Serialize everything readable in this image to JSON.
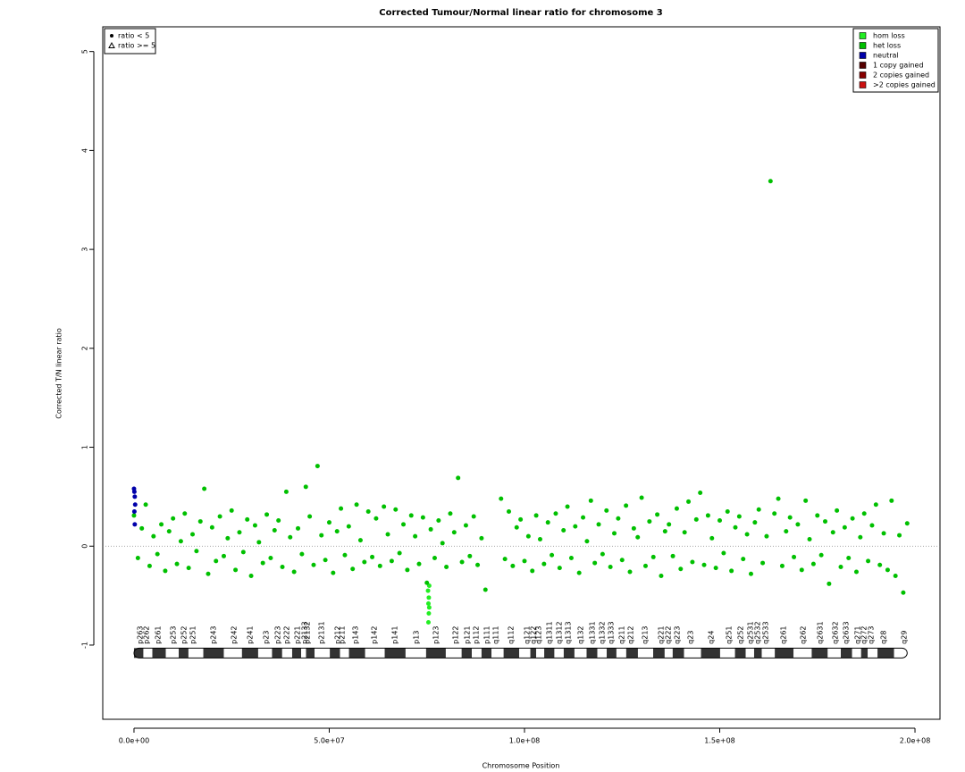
{
  "chart_data": {
    "type": "scatter",
    "title": "Corrected Tumour/Normal linear ratio for chromosome  3",
    "xlabel": "Chromosome Position",
    "ylabel": "Corrected T/N linear ratio",
    "xlim": [
      -8000000.0,
      206400000.0
    ],
    "ylim": [
      -1.75,
      5.25
    ],
    "xticks": [
      {
        "value": 0,
        "label": "0.0e+00"
      },
      {
        "value": 50000000.0,
        "label": "5.0e+07"
      },
      {
        "value": 100000000.0,
        "label": "1.0e+08"
      },
      {
        "value": 150000000.0,
        "label": "1.5e+08"
      },
      {
        "value": 200000000.0,
        "label": "2.0e+08"
      }
    ],
    "yticks": [
      -1,
      0,
      1,
      2,
      3,
      4,
      5
    ],
    "hline": 0,
    "legend": "top-right",
    "shape_legend": [
      "ratio < 5",
      "ratio >= 5"
    ],
    "series": [
      {
        "name": "hom loss",
        "color": "#22ee22",
        "x": [
          75300000.0,
          75500000.0,
          75400000.0,
          75600000.0,
          75500000.0,
          75400000.0,
          75600000.0
        ],
        "y": [
          -0.45,
          -0.52,
          -0.58,
          -0.62,
          -0.68,
          -0.77,
          -0.4
        ]
      },
      {
        "name": "het loss",
        "color": "#00c000",
        "x": [
          0,
          1000000.0,
          2000000.0,
          3000000.0,
          4000000.0,
          5000000.0,
          6000000.0,
          7000000.0,
          8000000.0,
          9000000.0,
          10000000.0,
          11000000.0,
          12000000.0,
          13000000.0,
          14000000.0,
          15000000.0,
          16000000.0,
          17000000.0,
          18000000.0,
          19000000.0,
          20000000.0,
          21000000.0,
          22000000.0,
          23000000.0,
          24000000.0,
          25000000.0,
          26000000.0,
          27000000.0,
          28000000.0,
          29000000.0,
          30000000.0,
          31000000.0,
          32000000.0,
          33000000.0,
          34000000.0,
          35000000.0,
          36000000.0,
          37000000.0,
          38000000.0,
          39000000.0,
          40000000.0,
          41000000.0,
          42000000.0,
          43000000.0,
          44000000.0,
          45000000.0,
          46000000.0,
          47000000.0,
          48000000.0,
          49000000.0,
          50000000.0,
          51000000.0,
          52000000.0,
          53000000.0,
          54000000.0,
          55000000.0,
          56000000.0,
          57000000.0,
          58000000.0,
          59000000.0,
          60000000.0,
          61000000.0,
          62000000.0,
          63000000.0,
          64000000.0,
          65000000.0,
          66000000.0,
          67000000.0,
          68000000.0,
          69000000.0,
          70000000.0,
          71000000.0,
          72000000.0,
          73000000.0,
          74000000.0,
          75000000.0,
          76000000.0,
          77000000.0,
          78000000.0,
          79000000.0,
          80000000.0,
          81000000.0,
          82000000.0,
          83000000.0,
          84000000.0,
          85000000.0,
          86000000.0,
          87000000.0,
          88000000.0,
          89000000.0,
          90000000.0,
          94000000.0,
          95000000.0,
          96000000.0,
          97000000.0,
          98000000.0,
          99000000.0,
          100000000.0,
          101000000.0,
          102000000.0,
          103000000.0,
          104000000.0,
          105000000.0,
          106000000.0,
          107000000.0,
          108000000.0,
          109000000.0,
          110000000.0,
          111000000.0,
          112000000.0,
          113000000.0,
          114000000.0,
          115000000.0,
          116000000.0,
          117000000.0,
          118000000.0,
          119000000.0,
          120000000.0,
          121000000.0,
          122000000.0,
          123000000.0,
          124000000.0,
          125000000.0,
          126000000.0,
          127000000.0,
          128000000.0,
          129000000.0,
          130000000.0,
          131000000.0,
          132000000.0,
          133000000.0,
          134000000.0,
          135000000.0,
          136000000.0,
          137000000.0,
          138000000.0,
          139000000.0,
          140000000.0,
          141000000.0,
          142000000.0,
          143000000.0,
          144000000.0,
          145000000.0,
          146000000.0,
          147000000.0,
          148000000.0,
          149000000.0,
          150000000.0,
          151000000.0,
          152000000.0,
          153000000.0,
          154000000.0,
          155000000.0,
          156000000.0,
          157000000.0,
          158000000.0,
          159000000.0,
          160000000.0,
          161000000.0,
          162000000.0,
          163000000.0,
          164000000.0,
          165000000.0,
          166000000.0,
          167000000.0,
          168000000.0,
          169000000.0,
          170000000.0,
          171000000.0,
          172000000.0,
          173000000.0,
          174000000.0,
          175000000.0,
          176000000.0,
          177000000.0,
          178000000.0,
          179000000.0,
          180000000.0,
          181000000.0,
          182000000.0,
          183000000.0,
          184000000.0,
          185000000.0,
          186000000.0,
          187000000.0,
          188000000.0,
          189000000.0,
          190000000.0,
          191000000.0,
          192000000.0,
          193000000.0,
          194000000.0,
          195000000.0,
          196000000.0,
          197000000.0,
          198000000.0
        ],
        "y": [
          0.31,
          -0.12,
          0.18,
          0.42,
          -0.2,
          0.1,
          -0.08,
          0.22,
          -0.25,
          0.15,
          0.28,
          -0.18,
          0.05,
          0.33,
          -0.22,
          0.12,
          -0.05,
          0.25,
          0.58,
          -0.28,
          0.19,
          -0.15,
          0.3,
          -0.1,
          0.08,
          0.36,
          -0.24,
          0.14,
          -0.06,
          0.27,
          -0.3,
          0.21,
          0.04,
          -0.17,
          0.32,
          -0.12,
          0.16,
          0.26,
          -0.21,
          0.55,
          0.09,
          -0.26,
          0.18,
          -0.08,
          0.6,
          0.3,
          -0.19,
          0.81,
          0.11,
          -0.14,
          0.24,
          -0.27,
          0.15,
          0.38,
          -0.09,
          0.2,
          -0.23,
          0.42,
          0.06,
          -0.16,
          0.35,
          -0.11,
          0.28,
          -0.2,
          0.4,
          0.12,
          -0.15,
          0.37,
          -0.07,
          0.22,
          -0.24,
          0.31,
          0.1,
          -0.18,
          0.29,
          -0.37,
          0.17,
          -0.12,
          0.26,
          0.03,
          -0.21,
          0.33,
          0.14,
          0.69,
          -0.16,
          0.21,
          -0.1,
          0.3,
          -0.19,
          0.08,
          -0.44,
          0.48,
          -0.13,
          0.35,
          -0.2,
          0.19,
          0.27,
          -0.15,
          0.1,
          -0.25,
          0.31,
          0.07,
          -0.18,
          0.24,
          -0.09,
          0.33,
          -0.22,
          0.16,
          0.4,
          -0.12,
          0.2,
          -0.27,
          0.29,
          0.05,
          0.46,
          -0.17,
          0.22,
          -0.08,
          0.36,
          -0.21,
          0.13,
          0.28,
          -0.14,
          0.41,
          -0.26,
          0.18,
          0.09,
          0.49,
          -0.2,
          0.25,
          -0.11,
          0.32,
          -0.3,
          0.15,
          0.22,
          -0.1,
          0.38,
          -0.23,
          0.14,
          0.45,
          -0.16,
          0.27,
          0.54,
          -0.19,
          0.31,
          0.08,
          -0.22,
          0.26,
          -0.07,
          0.35,
          -0.25,
          0.19,
          0.3,
          -0.13,
          0.12,
          -0.28,
          0.24,
          0.37,
          -0.17,
          0.1,
          3.69,
          0.33,
          0.48,
          -0.2,
          0.15,
          0.29,
          -0.11,
          0.22,
          -0.24,
          0.46,
          0.07,
          -0.18,
          0.31,
          -0.09,
          0.25,
          -0.38,
          0.14,
          0.36,
          -0.21,
          0.19,
          -0.12,
          0.28,
          -0.26,
          0.09,
          0.33,
          -0.15,
          0.21,
          0.42,
          -0.19,
          0.13,
          -0.24,
          0.46,
          -0.3,
          0.11,
          -0.47,
          0.23
        ]
      },
      {
        "name": "neutral",
        "color": "#0000aa",
        "x": [
          0,
          100000.0,
          200000.0,
          300000.0,
          100000.0,
          200000.0
        ],
        "y": [
          0.58,
          0.55,
          0.5,
          0.42,
          0.35,
          0.22
        ]
      },
      {
        "name": "1 copy gained",
        "color": "#550000",
        "x": [],
        "y": []
      },
      {
        "name": "2 copies gained",
        "color": "#880000",
        "x": [],
        "y": []
      },
      {
        "name": ">2 copies gained",
        "color": "#cc1111",
        "x": [],
        "y": []
      }
    ],
    "ideogram": {
      "y": -1.08,
      "end": 198000000.0,
      "bands": [
        {
          "label": "p263",
          "x": 1600000.0
        },
        {
          "label": "p262",
          "x": 3200000.0
        },
        {
          "label": "p261",
          "x": 6200000.0
        },
        {
          "label": "p253",
          "x": 10100000.0
        },
        {
          "label": "p252",
          "x": 12800000.0
        },
        {
          "label": "p251",
          "x": 15100000.0
        },
        {
          "label": "p243",
          "x": 20400000.0
        },
        {
          "label": "p242",
          "x": 25600000.0
        },
        {
          "label": "p241",
          "x": 29700000.0
        },
        {
          "label": "p23",
          "x": 33900000.0
        },
        {
          "label": "p223",
          "x": 36800000.0
        },
        {
          "label": "p222",
          "x": 39100000.0
        },
        {
          "label": "p221",
          "x": 41900000.0
        },
        {
          "label": "p2133",
          "x": 43700000.0
        },
        {
          "label": "p2132",
          "x": 44400000.0
        },
        {
          "label": "p2131",
          "x": 48100000.0
        },
        {
          "label": "p212",
          "x": 52200000.0
        },
        {
          "label": "p211",
          "x": 53300000.0
        },
        {
          "label": "p143",
          "x": 56800000.0
        },
        {
          "label": "p142",
          "x": 61600000.0
        },
        {
          "label": "p141",
          "x": 66800000.0
        },
        {
          "label": "p13",
          "x": 72300000.0
        },
        {
          "label": "p123",
          "x": 77300000.0
        },
        {
          "label": "p122",
          "x": 82400000.0
        },
        {
          "label": "p121",
          "x": 85400000.0
        },
        {
          "label": "p112",
          "x": 87600000.0
        },
        {
          "label": "p111",
          "x": 90400000.0
        },
        {
          "label": "q111",
          "x": 92700000.0
        },
        {
          "label": "q112",
          "x": 96600000.0
        },
        {
          "label": "q121",
          "x": 100700000.0
        },
        {
          "label": "q122",
          "x": 102300000.0
        },
        {
          "label": "q123",
          "x": 103700000.0
        },
        {
          "label": "q1311",
          "x": 106400000.0
        },
        {
          "label": "q1312",
          "x": 108900000.0
        },
        {
          "label": "q1313",
          "x": 111200000.0
        },
        {
          "label": "q132",
          "x": 114400000.0
        },
        {
          "label": "q1331",
          "x": 117400000.0
        },
        {
          "label": "q1332",
          "x": 119900000.0
        },
        {
          "label": "q1333",
          "x": 122200000.0
        },
        {
          "label": "q211",
          "x": 124900000.0
        },
        {
          "label": "q212",
          "x": 127200000.0
        },
        {
          "label": "q213",
          "x": 130900000.0
        },
        {
          "label": "q221",
          "x": 135000000.0
        },
        {
          "label": "q222",
          "x": 136800000.0
        },
        {
          "label": "q223",
          "x": 139100000.0
        },
        {
          "label": "q23",
          "x": 142600000.0
        },
        {
          "label": "q24",
          "x": 147800000.0
        },
        {
          "label": "q251",
          "x": 152400000.0
        },
        {
          "label": "q252",
          "x": 155400000.0
        },
        {
          "label": "q2531",
          "x": 157900000.0
        },
        {
          "label": "q2532",
          "x": 159700000.0
        },
        {
          "label": "q2533",
          "x": 161800000.0
        },
        {
          "label": "q261",
          "x": 166400000.0
        },
        {
          "label": "q262",
          "x": 171400000.0
        },
        {
          "label": "q2631",
          "x": 175700000.0
        },
        {
          "label": "q2632",
          "x": 179600000.0
        },
        {
          "label": "q2633",
          "x": 182400000.0
        },
        {
          "label": "q271",
          "x": 185400000.0
        },
        {
          "label": "q272",
          "x": 187000000.0
        },
        {
          "label": "q273",
          "x": 188800000.0
        },
        {
          "label": "q28",
          "x": 192000000.0
        },
        {
          "label": "q29",
          "x": 197300000.0
        }
      ]
    }
  }
}
